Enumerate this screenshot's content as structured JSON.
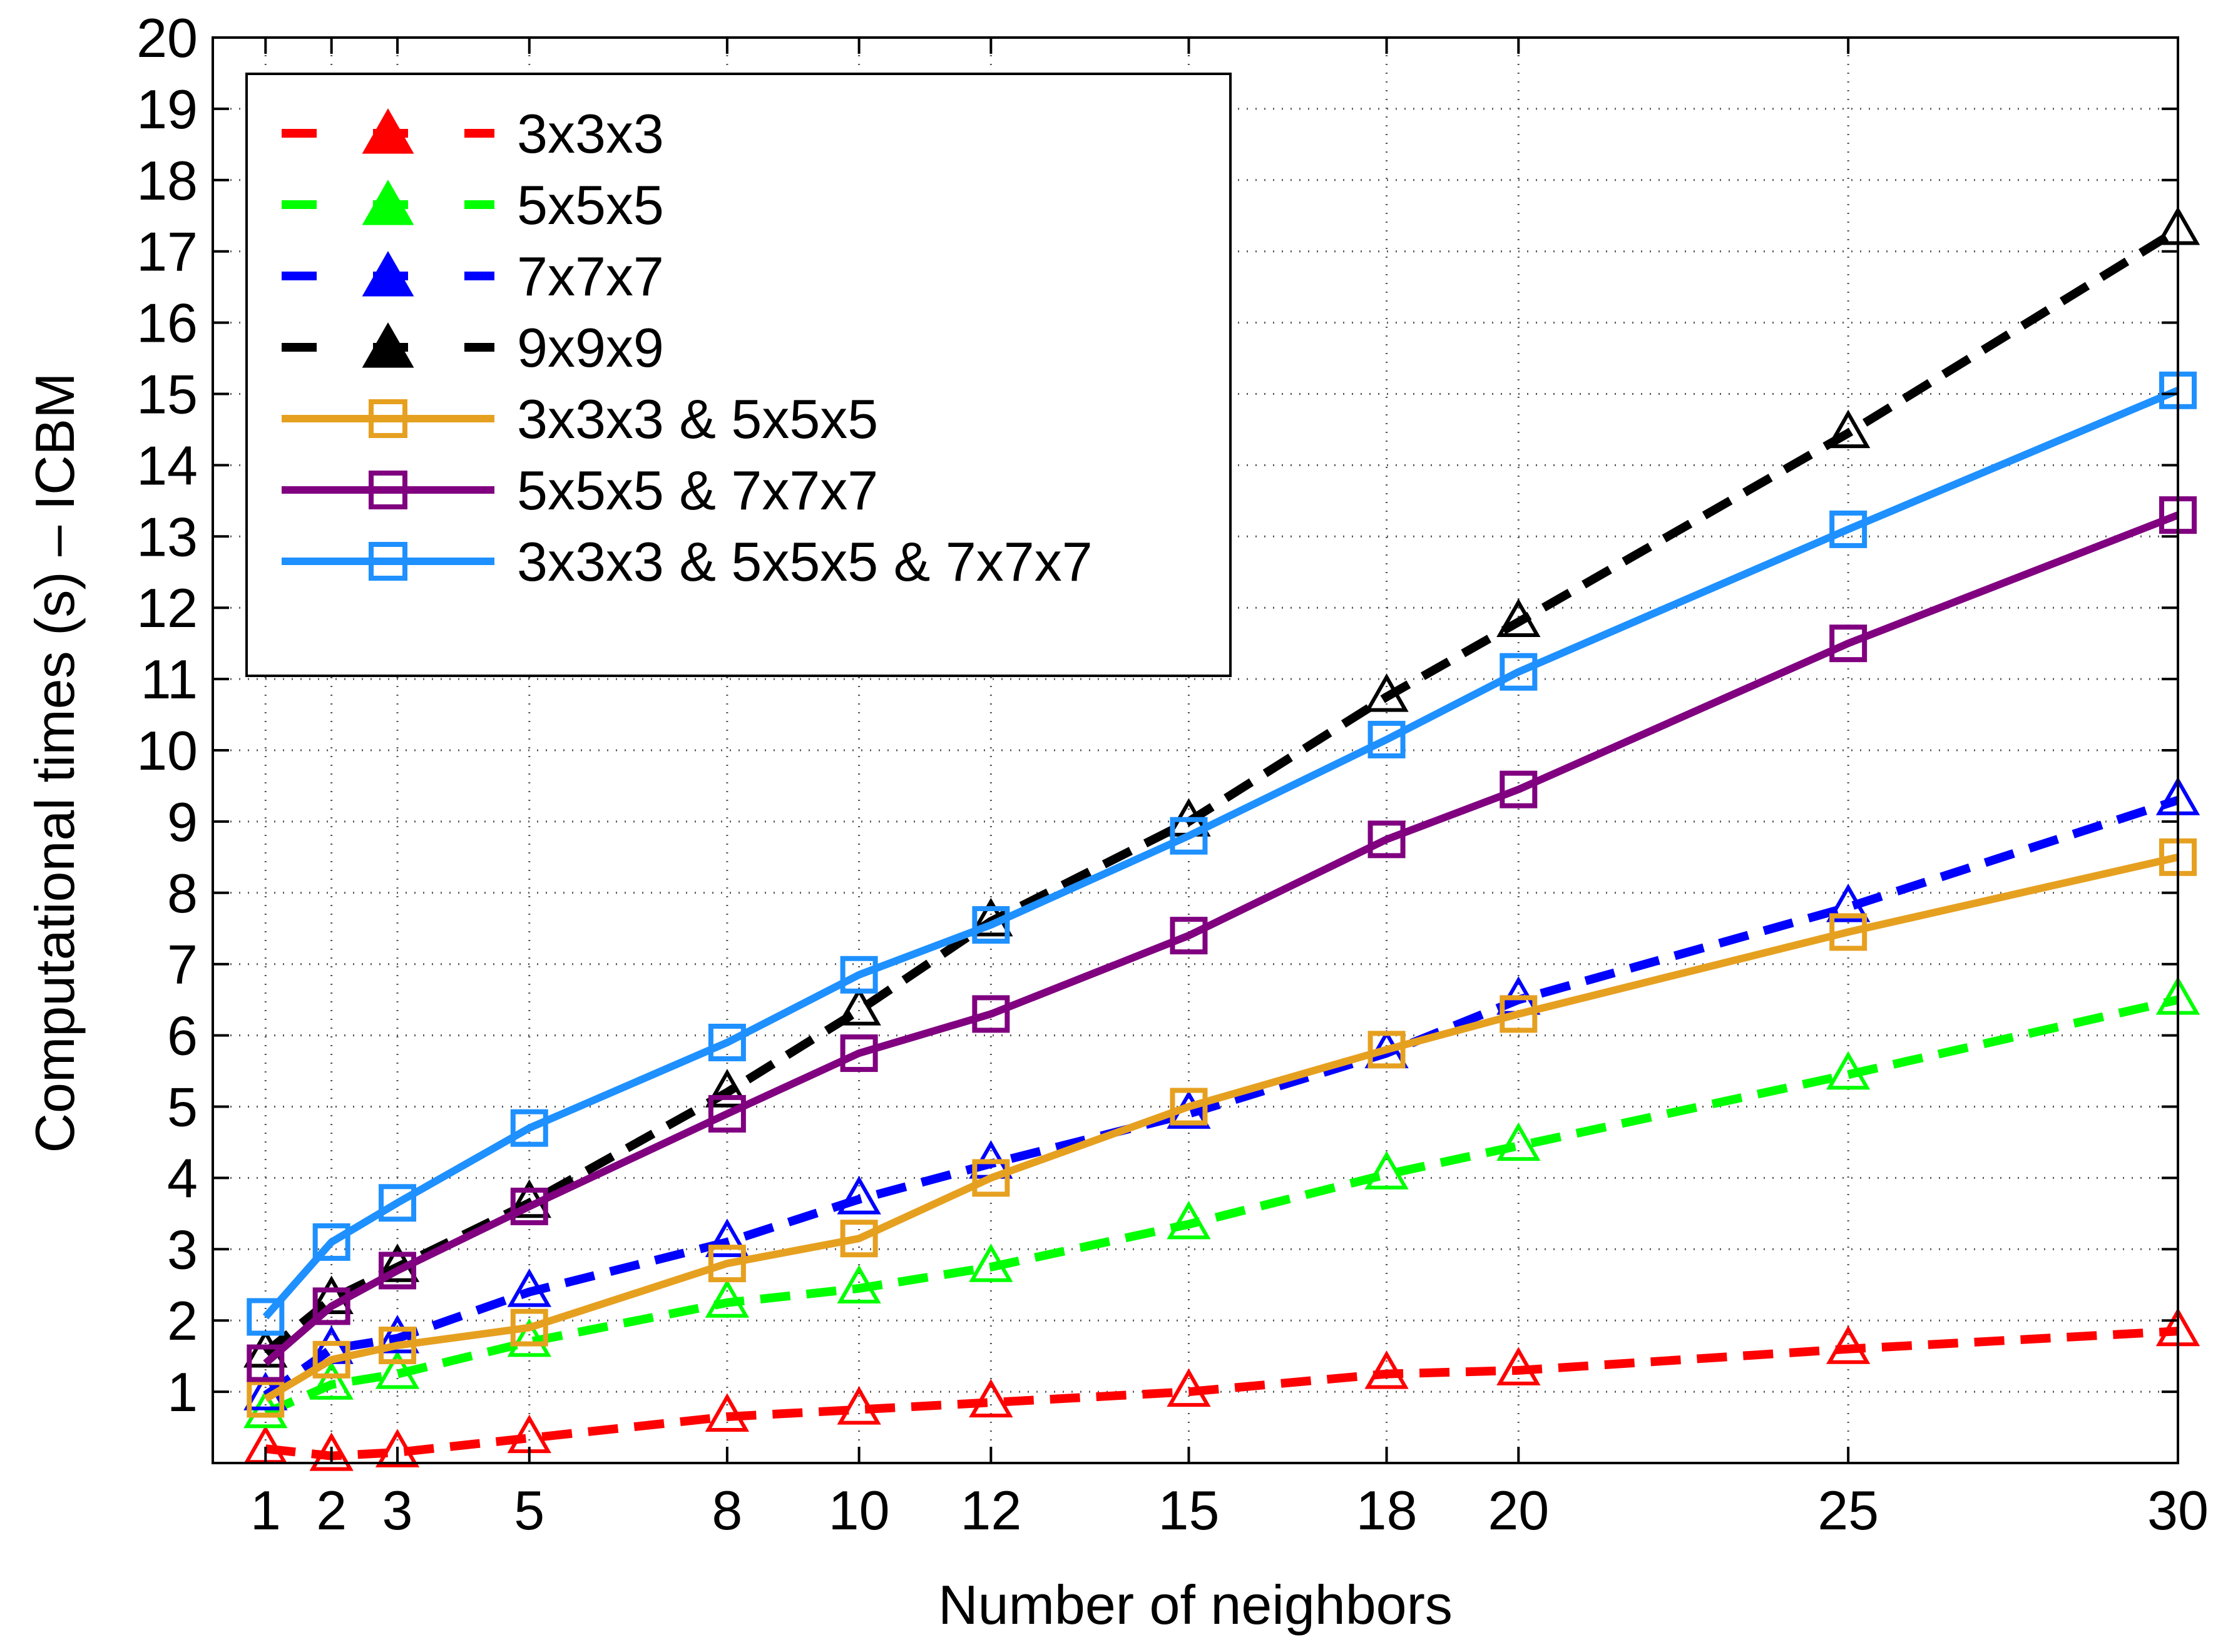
{
  "chart_data": {
    "type": "line",
    "title": "",
    "xlabel": "Number of neighbors",
    "ylabel": "Computational times (s) – ICBM",
    "x": [
      1,
      2,
      3,
      5,
      8,
      10,
      12,
      15,
      18,
      20,
      25,
      30
    ],
    "xticks": [
      1,
      2,
      3,
      5,
      8,
      10,
      12,
      15,
      18,
      20,
      25,
      30
    ],
    "xtick_labels": [
      "1",
      "2",
      "3",
      "5",
      "8",
      "10",
      "12",
      "15",
      "18",
      "20",
      "25",
      "30"
    ],
    "xlim": [
      0.2,
      30
    ],
    "ylim": [
      0,
      20
    ],
    "yticks": [
      1,
      2,
      3,
      4,
      5,
      6,
      7,
      8,
      9,
      10,
      11,
      12,
      13,
      14,
      15,
      16,
      17,
      18,
      19,
      20
    ],
    "ytick_labels": [
      "1",
      "2",
      "3",
      "4",
      "5",
      "6",
      "7",
      "8",
      "9",
      "10",
      "11",
      "12",
      "13",
      "14",
      "15",
      "16",
      "17",
      "18",
      "19",
      "20"
    ],
    "grid": "dotted",
    "legend_position": "top-left",
    "series": [
      {
        "name": "3x3x3",
        "color": "#ff0000",
        "line_style": "dashed",
        "marker": "triangle",
        "values": [
          0.2,
          0.1,
          0.15,
          0.35,
          0.65,
          0.75,
          0.85,
          1.0,
          1.25,
          1.3,
          1.6,
          1.85
        ]
      },
      {
        "name": "5x5x5",
        "color": "#00ff00",
        "line_style": "dashed",
        "marker": "triangle",
        "values": [
          0.7,
          1.1,
          1.25,
          1.7,
          2.25,
          2.45,
          2.75,
          3.35,
          4.05,
          4.45,
          5.45,
          6.5
        ]
      },
      {
        "name": "7x7x7",
        "color": "#0000ff",
        "line_style": "dashed",
        "marker": "triangle",
        "values": [
          0.95,
          1.6,
          1.75,
          2.4,
          3.1,
          3.7,
          4.2,
          4.9,
          5.75,
          6.5,
          7.8,
          9.3
        ]
      },
      {
        "name": "9x9x9",
        "color": "#000000",
        "line_style": "dashed",
        "marker": "triangle",
        "values": [
          1.55,
          2.3,
          2.75,
          3.65,
          5.2,
          6.35,
          7.6,
          9.0,
          10.75,
          11.8,
          14.45,
          17.3
        ]
      },
      {
        "name": "3x3x3 & 5x5x5",
        "color": "#e6a020",
        "line_style": "solid",
        "marker": "square",
        "values": [
          0.9,
          1.45,
          1.65,
          1.9,
          2.8,
          3.15,
          4.0,
          5.0,
          5.8,
          6.3,
          7.45,
          8.5
        ]
      },
      {
        "name": "5x5x5 & 7x7x7",
        "color": "#800080",
        "line_style": "solid",
        "marker": "square",
        "values": [
          1.4,
          2.2,
          2.7,
          3.6,
          4.9,
          5.75,
          6.3,
          7.4,
          8.75,
          9.45,
          11.5,
          13.3
        ]
      },
      {
        "name": "3x3x3 & 5x5x5 & 7x7x7",
        "color": "#1e90ff",
        "line_style": "solid",
        "marker": "square",
        "values": [
          2.05,
          3.1,
          3.65,
          4.7,
          5.9,
          6.85,
          7.55,
          8.8,
          10.15,
          11.1,
          13.1,
          15.05
        ]
      }
    ]
  }
}
